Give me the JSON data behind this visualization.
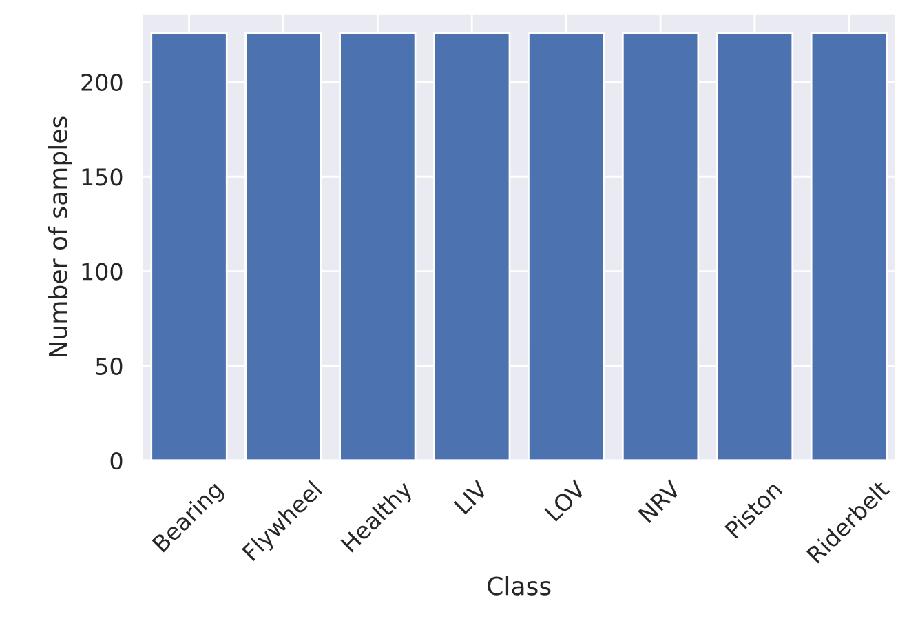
{
  "chart_data": {
    "type": "bar",
    "xlabel": "Class",
    "ylabel": "Number of samples",
    "categories": [
      "Bearing",
      "Flywheel",
      "Healthy",
      "LIV",
      "LOV",
      "NRV",
      "Piston",
      "Riderbelt"
    ],
    "values": [
      226,
      226,
      226,
      226,
      226,
      226,
      226,
      226
    ],
    "color": "#4c72b0",
    "ylim": [
      0,
      236
    ],
    "yticks": [
      0,
      50,
      100,
      150,
      200
    ],
    "grid": true
  }
}
